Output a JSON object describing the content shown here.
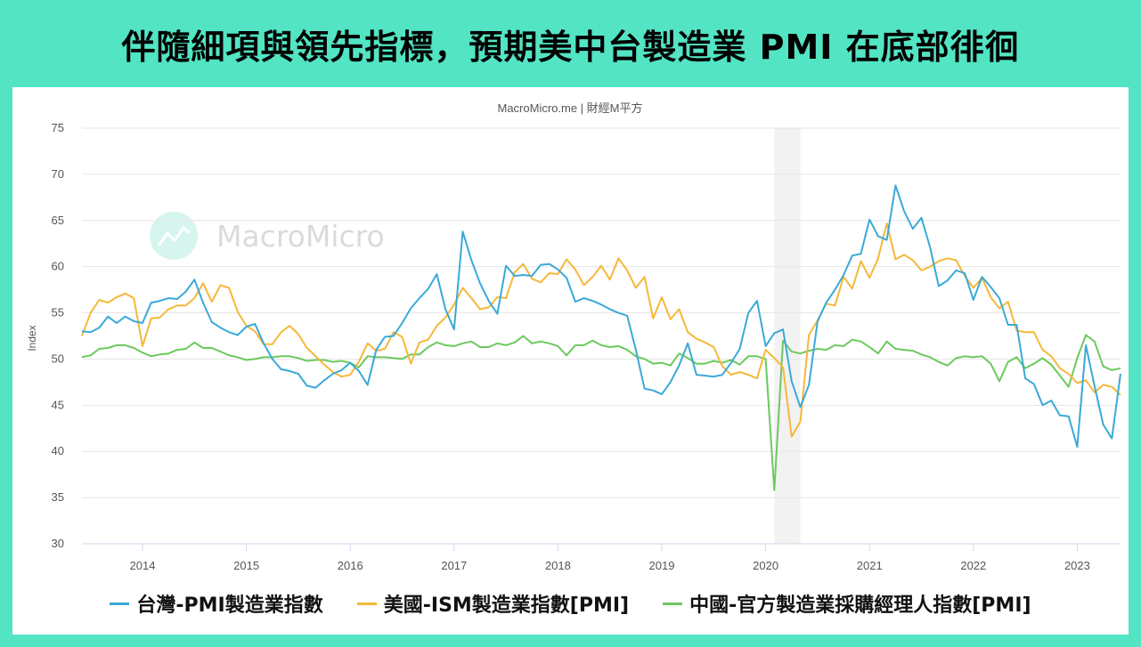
{
  "title": "伴隨細項與領先指標，預期美中台製造業 PMI 在底部徘徊",
  "source": "MacroMicro.me | 財經M平方",
  "watermark": "MacroMicro",
  "chart_data": {
    "type": "line",
    "ylabel": "Index",
    "ylim": [
      30,
      75
    ],
    "yticks": [
      30,
      35,
      40,
      45,
      50,
      55,
      60,
      65,
      70,
      75
    ],
    "xticks": [
      "2014",
      "2015",
      "2016",
      "2017",
      "2018",
      "2019",
      "2020",
      "2021",
      "2022",
      "2023"
    ],
    "grid": true,
    "legend_position": "bottom",
    "shaded_period": {
      "start": "2020-02",
      "end": "2020-04",
      "color": "#f2f2f2"
    },
    "x": [
      "2013-06",
      "2013-07",
      "2013-08",
      "2013-09",
      "2013-10",
      "2013-11",
      "2013-12",
      "2014-01",
      "2014-02",
      "2014-03",
      "2014-04",
      "2014-05",
      "2014-06",
      "2014-07",
      "2014-08",
      "2014-09",
      "2014-10",
      "2014-11",
      "2014-12",
      "2015-01",
      "2015-02",
      "2015-03",
      "2015-04",
      "2015-05",
      "2015-06",
      "2015-07",
      "2015-08",
      "2015-09",
      "2015-10",
      "2015-11",
      "2015-12",
      "2016-01",
      "2016-02",
      "2016-03",
      "2016-04",
      "2016-05",
      "2016-06",
      "2016-07",
      "2016-08",
      "2016-09",
      "2016-10",
      "2016-11",
      "2016-12",
      "2017-01",
      "2017-02",
      "2017-03",
      "2017-04",
      "2017-05",
      "2017-06",
      "2017-07",
      "2017-08",
      "2017-09",
      "2017-10",
      "2017-11",
      "2017-12",
      "2018-01",
      "2018-02",
      "2018-03",
      "2018-04",
      "2018-05",
      "2018-06",
      "2018-07",
      "2018-08",
      "2018-09",
      "2018-10",
      "2018-11",
      "2018-12",
      "2019-01",
      "2019-02",
      "2019-03",
      "2019-04",
      "2019-05",
      "2019-06",
      "2019-07",
      "2019-08",
      "2019-09",
      "2019-10",
      "2019-11",
      "2019-12",
      "2020-01",
      "2020-02",
      "2020-03",
      "2020-04",
      "2020-05",
      "2020-06",
      "2020-07",
      "2020-08",
      "2020-09",
      "2020-10",
      "2020-11",
      "2020-12",
      "2021-01",
      "2021-02",
      "2021-03",
      "2021-04",
      "2021-05",
      "2021-06",
      "2021-07",
      "2021-08",
      "2021-09",
      "2021-10",
      "2021-11",
      "2021-12",
      "2022-01",
      "2022-02",
      "2022-03",
      "2022-04",
      "2022-05",
      "2022-06",
      "2022-07",
      "2022-08",
      "2022-09",
      "2022-10",
      "2022-11",
      "2022-12",
      "2023-01",
      "2023-02",
      "2023-03",
      "2023-04",
      "2023-05",
      "2023-06"
    ],
    "series": [
      {
        "name": "台灣-PMI製造業指數",
        "color": "#3aa9d8",
        "values": [
          53.0,
          52.9,
          53.4,
          54.6,
          53.9,
          54.6,
          54.1,
          53.9,
          56.1,
          56.3,
          56.6,
          56.5,
          57.3,
          58.6,
          56.1,
          54.0,
          53.4,
          52.9,
          52.6,
          53.5,
          53.8,
          51.7,
          50.0,
          48.9,
          48.7,
          48.4,
          47.1,
          46.9,
          47.7,
          48.4,
          48.8,
          49.6,
          48.7,
          47.2,
          51.0,
          52.4,
          52.5,
          53.9,
          55.5,
          56.6,
          57.6,
          59.2,
          55.4,
          53.2,
          63.8,
          60.7,
          58.2,
          56.3,
          54.9,
          60.1,
          59.0,
          59.1,
          59.0,
          60.2,
          60.3,
          59.7,
          58.8,
          56.2,
          56.6,
          56.3,
          55.9,
          55.4,
          55.0,
          54.7,
          51.0,
          46.8,
          46.6,
          46.2,
          47.5,
          49.3,
          51.7,
          48.3,
          48.2,
          48.1,
          48.3,
          49.6,
          51.1,
          55.0,
          56.3,
          51.4,
          52.8,
          53.2,
          47.6,
          44.8,
          47.2,
          54.1,
          56.1,
          57.5,
          59.1,
          61.2,
          61.4,
          65.1,
          63.3,
          62.9,
          68.8,
          66.0,
          64.1,
          65.3,
          62.1,
          57.9,
          58.5,
          59.6,
          59.3,
          56.4,
          58.9,
          57.8,
          56.6,
          53.7,
          53.7,
          47.9,
          47.3,
          45.0,
          45.5,
          43.9,
          43.8,
          40.5,
          51.5,
          47.1,
          42.9,
          41.4,
          48.4
        ]
      },
      {
        "name": "美國-ISM製造業指數[PMI]",
        "color": "#f5b83a",
        "values": [
          52.5,
          55.0,
          56.4,
          56.1,
          56.7,
          57.1,
          56.6,
          51.4,
          54.4,
          54.5,
          55.4,
          55.8,
          55.8,
          56.6,
          58.2,
          56.2,
          58.0,
          57.7,
          55.1,
          53.6,
          53.0,
          51.6,
          51.6,
          52.9,
          53.6,
          52.7,
          51.2,
          50.3,
          49.4,
          48.6,
          48.1,
          48.3,
          49.7,
          51.7,
          50.9,
          51.1,
          52.9,
          52.4,
          49.5,
          51.8,
          52.1,
          53.6,
          54.5,
          55.9,
          57.7,
          56.6,
          55.4,
          55.6,
          56.7,
          56.6,
          59.4,
          60.3,
          58.7,
          58.3,
          59.3,
          59.2,
          60.8,
          59.7,
          58.0,
          58.9,
          60.1,
          58.6,
          60.9,
          59.6,
          57.7,
          58.9,
          54.4,
          56.7,
          54.3,
          55.4,
          52.9,
          52.2,
          51.8,
          51.3,
          49.2,
          48.3,
          48.6,
          48.3,
          47.9,
          51.0,
          50.1,
          49.1,
          41.6,
          43.2,
          52.6,
          54.2,
          56.0,
          55.8,
          58.9,
          57.6,
          60.6,
          58.8,
          60.9,
          64.7,
          60.8,
          61.3,
          60.7,
          59.6,
          60.0,
          60.6,
          60.9,
          60.7,
          59.0,
          57.7,
          58.8,
          56.7,
          55.5,
          56.2,
          53.1,
          52.9,
          52.9,
          51.0,
          50.3,
          49.0,
          48.4,
          47.4,
          47.7,
          46.4,
          47.2,
          47.0,
          46.1
        ]
      },
      {
        "name": "中國-官方製造業採購經理人指數[PMI]",
        "color": "#6cc95e",
        "values": [
          50.2,
          50.4,
          51.1,
          51.2,
          51.5,
          51.5,
          51.2,
          50.7,
          50.3,
          50.5,
          50.6,
          51.0,
          51.1,
          51.8,
          51.2,
          51.2,
          50.8,
          50.4,
          50.2,
          49.9,
          50.0,
          50.2,
          50.2,
          50.3,
          50.3,
          50.1,
          49.8,
          49.9,
          49.9,
          49.7,
          49.8,
          49.6,
          49.1,
          50.3,
          50.2,
          50.2,
          50.1,
          50.0,
          50.5,
          50.5,
          51.3,
          51.8,
          51.5,
          51.4,
          51.7,
          51.9,
          51.3,
          51.3,
          51.7,
          51.5,
          51.8,
          52.5,
          51.7,
          51.9,
          51.7,
          51.4,
          50.4,
          51.5,
          51.5,
          52.0,
          51.5,
          51.3,
          51.4,
          51.0,
          50.3,
          50.0,
          49.5,
          49.6,
          49.3,
          50.6,
          50.1,
          49.5,
          49.5,
          49.8,
          49.6,
          49.9,
          49.4,
          50.3,
          50.3,
          50.0,
          35.8,
          52.0,
          50.8,
          50.6,
          50.9,
          51.1,
          51.0,
          51.5,
          51.4,
          52.1,
          51.9,
          51.3,
          50.6,
          51.9,
          51.1,
          51.0,
          50.9,
          50.5,
          50.2,
          49.7,
          49.3,
          50.1,
          50.3,
          50.2,
          50.3,
          49.5,
          47.6,
          49.7,
          50.2,
          49.0,
          49.5,
          50.1,
          49.4,
          48.2,
          47.0,
          50.1,
          52.6,
          51.9,
          49.2,
          48.8,
          49.0
        ]
      }
    ]
  }
}
